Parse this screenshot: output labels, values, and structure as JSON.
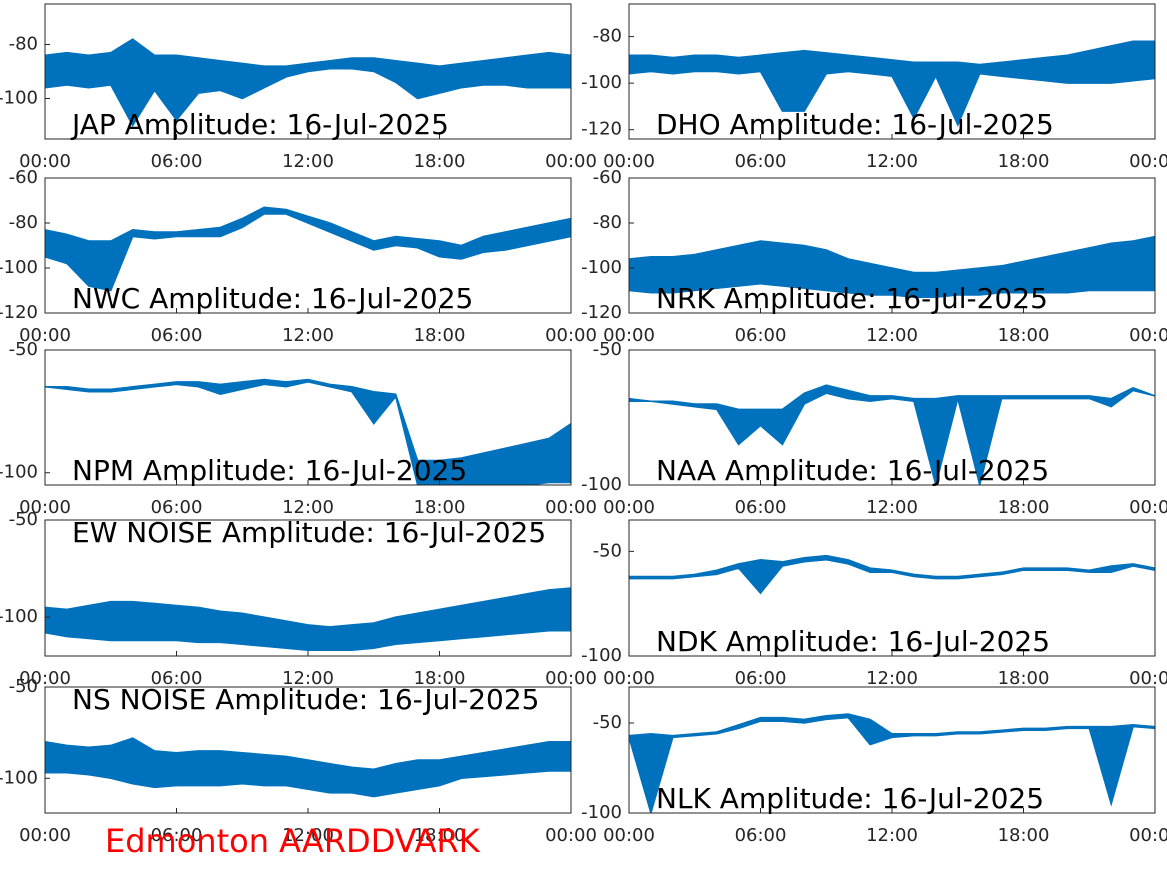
{
  "footer": "Edmonton AARDDVARK",
  "chart_data": [
    {
      "type": "band",
      "title": "JAP Amplitude: 16-Jul-2025",
      "title_position": "bottom",
      "color": "#0072bd",
      "x": [
        0,
        1,
        2,
        3,
        4,
        5,
        6,
        7,
        8,
        9,
        10,
        11,
        12,
        13,
        14,
        15,
        16,
        17,
        18,
        19,
        20,
        21,
        22,
        23,
        24
      ],
      "upper": [
        -84,
        -83,
        -84,
        -83,
        -78,
        -84,
        -84,
        -85,
        -86,
        -87,
        -88,
        -88,
        -87,
        -86,
        -85,
        -85,
        -86,
        -87,
        -88,
        -87,
        -86,
        -85,
        -84,
        -83,
        -84
      ],
      "lower": [
        -96,
        -95,
        -96,
        -95,
        -110,
        -97,
        -108,
        -98,
        -97,
        -100,
        -96,
        -92,
        -90,
        -89,
        -89,
        -90,
        -94,
        -100,
        -98,
        -96,
        -95,
        -95,
        -96,
        -96,
        -96
      ],
      "xlim": [
        0,
        24
      ],
      "xticks": [
        {
          "value": 0,
          "label": "00:00"
        },
        {
          "value": 6,
          "label": "06:00"
        },
        {
          "value": 12,
          "label": "12:00"
        },
        {
          "value": 18,
          "label": "18:00"
        },
        {
          "value": 24,
          "label": "00:00"
        }
      ],
      "ylim": [
        -115,
        -65
      ],
      "yticks": [
        -100,
        -80
      ]
    },
    {
      "type": "band",
      "title": "DHO Amplitude: 16-Jul-2025",
      "title_position": "bottom",
      "color": "#0072bd",
      "x": [
        0,
        1,
        2,
        3,
        4,
        5,
        6,
        7,
        8,
        9,
        10,
        11,
        12,
        13,
        14,
        15,
        16,
        17,
        18,
        19,
        20,
        21,
        22,
        23,
        24
      ],
      "upper": [
        -88,
        -88,
        -89,
        -88,
        -88,
        -89,
        -88,
        -87,
        -86,
        -87,
        -88,
        -89,
        -90,
        -91,
        -91,
        -91,
        -92,
        -91,
        -90,
        -89,
        -88,
        -86,
        -84,
        -82,
        -82
      ],
      "lower": [
        -96,
        -95,
        -96,
        -95,
        -95,
        -96,
        -95,
        -112,
        -112,
        -96,
        -95,
        -96,
        -97,
        -115,
        -97,
        -118,
        -96,
        -97,
        -98,
        -99,
        -100,
        -100,
        -100,
        -99,
        -98
      ],
      "xlim": [
        0,
        24
      ],
      "xticks": [
        {
          "value": 0,
          "label": "00:00"
        },
        {
          "value": 6,
          "label": "06:00"
        },
        {
          "value": 12,
          "label": "12:00"
        },
        {
          "value": 18,
          "label": "18:00"
        },
        {
          "value": 24,
          "label": "00:00"
        }
      ],
      "ylim": [
        -124,
        -66
      ],
      "yticks": [
        -120,
        -100,
        -80
      ]
    },
    {
      "type": "band",
      "title": "NWC Amplitude: 16-Jul-2025",
      "title_position": "bottom",
      "color": "#0072bd",
      "x": [
        0,
        1,
        2,
        3,
        4,
        5,
        6,
        7,
        8,
        9,
        10,
        11,
        12,
        13,
        14,
        15,
        16,
        17,
        18,
        19,
        20,
        21,
        22,
        23,
        24
      ],
      "upper": [
        -83,
        -85,
        -88,
        -88,
        -83,
        -84,
        -84,
        -83,
        -82,
        -78,
        -73,
        -74,
        -77,
        -80,
        -84,
        -88,
        -86,
        -87,
        -88,
        -90,
        -86,
        -84,
        -82,
        -80,
        -78
      ],
      "lower": [
        -95,
        -98,
        -108,
        -110,
        -86,
        -87,
        -86,
        -86,
        -86,
        -82,
        -76,
        -76,
        -80,
        -84,
        -88,
        -92,
        -90,
        -91,
        -95,
        -96,
        -93,
        -92,
        -90,
        -88,
        -86
      ],
      "xlim": [
        0,
        24
      ],
      "xticks": [
        {
          "value": 0,
          "label": "00:00"
        },
        {
          "value": 6,
          "label": "06:00"
        },
        {
          "value": 12,
          "label": "12:00"
        },
        {
          "value": 18,
          "label": "18:00"
        },
        {
          "value": 24,
          "label": "00:00"
        }
      ],
      "ylim": [
        -120,
        -60
      ],
      "yticks": [
        -120,
        -100,
        -80,
        -60
      ]
    },
    {
      "type": "band",
      "title": "NRK Amplitude: 16-Jul-2025",
      "title_position": "bottom",
      "color": "#0072bd",
      "x": [
        0,
        1,
        2,
        3,
        4,
        5,
        6,
        7,
        8,
        9,
        10,
        11,
        12,
        13,
        14,
        15,
        16,
        17,
        18,
        19,
        20,
        21,
        22,
        23,
        24
      ],
      "upper": [
        -96,
        -95,
        -95,
        -94,
        -92,
        -90,
        -88,
        -89,
        -90,
        -92,
        -96,
        -98,
        -100,
        -102,
        -102,
        -101,
        -100,
        -99,
        -97,
        -95,
        -93,
        -91,
        -89,
        -88,
        -86
      ],
      "lower": [
        -110,
        -111,
        -111,
        -110,
        -109,
        -108,
        -107,
        -108,
        -109,
        -110,
        -111,
        -112,
        -112,
        -113,
        -113,
        -112,
        -112,
        -111,
        -111,
        -111,
        -111,
        -110,
        -110,
        -110,
        -110
      ],
      "xlim": [
        0,
        24
      ],
      "xticks": [
        {
          "value": 0,
          "label": "00:00"
        },
        {
          "value": 6,
          "label": "06:00"
        },
        {
          "value": 12,
          "label": "12:00"
        },
        {
          "value": 18,
          "label": "18:00"
        },
        {
          "value": 24,
          "label": "00:00"
        }
      ],
      "ylim": [
        -120,
        -60
      ],
      "yticks": [
        -120,
        -100,
        -80,
        -60
      ]
    },
    {
      "type": "band",
      "title": "NPM Amplitude: 16-Jul-2025",
      "title_position": "bottom",
      "color": "#0072bd",
      "x": [
        0,
        1,
        2,
        3,
        4,
        5,
        6,
        7,
        8,
        9,
        10,
        11,
        12,
        13,
        14,
        15,
        16,
        17,
        18,
        19,
        20,
        21,
        22,
        23,
        24
      ],
      "upper": [
        -65,
        -65,
        -66,
        -66,
        -65,
        -64,
        -63,
        -63,
        -64,
        -63,
        -62,
        -63,
        -62,
        -64,
        -65,
        -67,
        -68,
        -95,
        -95,
        -94,
        -92,
        -90,
        -88,
        -86,
        -80
      ],
      "lower": [
        -65,
        -66,
        -67,
        -67,
        -66,
        -65,
        -64,
        -65,
        -68,
        -66,
        -64,
        -65,
        -63,
        -65,
        -67,
        -80,
        -69,
        -105,
        -105,
        -105,
        -105,
        -105,
        -105,
        -104,
        -104
      ],
      "xlim": [
        0,
        24
      ],
      "xticks": [
        {
          "value": 0,
          "label": "00:00"
        },
        {
          "value": 6,
          "label": "06:00"
        },
        {
          "value": 12,
          "label": "12:00"
        },
        {
          "value": 18,
          "label": "18:00"
        },
        {
          "value": 24,
          "label": "00:00"
        }
      ],
      "ylim": [
        -105,
        -50
      ],
      "yticks": [
        -100,
        -50
      ]
    },
    {
      "type": "band",
      "title": "NAA Amplitude: 16-Jul-2025",
      "title_position": "bottom",
      "color": "#0072bd",
      "x": [
        0,
        1,
        2,
        3,
        4,
        5,
        6,
        7,
        8,
        9,
        10,
        11,
        12,
        13,
        14,
        15,
        16,
        17,
        18,
        19,
        20,
        21,
        22,
        23,
        24
      ],
      "upper": [
        -68,
        -69,
        -69,
        -70,
        -70,
        -72,
        -72,
        -72,
        -66,
        -63,
        -65,
        -67,
        -67,
        -68,
        -68,
        -67,
        -67,
        -67,
        -67,
        -67,
        -67,
        -67,
        -68,
        -64,
        -67
      ],
      "lower": [
        -69,
        -69,
        -70,
        -71,
        -72,
        -85,
        -78,
        -85,
        -70,
        -66,
        -68,
        -69,
        -68,
        -69,
        -100,
        -68,
        -100,
        -68,
        -68,
        -68,
        -68,
        -68,
        -71,
        -65,
        -67
      ],
      "xlim": [
        0,
        24
      ],
      "xticks": [
        {
          "value": 0,
          "label": "00:00"
        },
        {
          "value": 6,
          "label": "06:00"
        },
        {
          "value": 12,
          "label": "12:00"
        },
        {
          "value": 18,
          "label": "18:00"
        },
        {
          "value": 24,
          "label": "00:00"
        }
      ],
      "ylim": [
        -100,
        -50
      ],
      "yticks": [
        -100,
        -50
      ]
    },
    {
      "type": "band",
      "title": "EW NOISE Amplitude: 16-Jul-2025",
      "title_position": "top",
      "color": "#0072bd",
      "x": [
        0,
        1,
        2,
        3,
        4,
        5,
        6,
        7,
        8,
        9,
        10,
        11,
        12,
        13,
        14,
        15,
        16,
        17,
        18,
        19,
        20,
        21,
        22,
        23,
        24
      ],
      "upper": [
        -95,
        -96,
        -94,
        -92,
        -92,
        -93,
        -94,
        -95,
        -97,
        -98,
        -100,
        -102,
        -104,
        -105,
        -104,
        -103,
        -100,
        -98,
        -96,
        -94,
        -92,
        -90,
        -88,
        -86,
        -85
      ],
      "lower": [
        -108,
        -110,
        -111,
        -112,
        -112,
        -112,
        -112,
        -113,
        -113,
        -114,
        -115,
        -116,
        -117,
        -117,
        -117,
        -116,
        -114,
        -113,
        -112,
        -111,
        -110,
        -109,
        -108,
        -107,
        -107
      ],
      "xlim": [
        0,
        24
      ],
      "xticks": [
        {
          "value": 0,
          "label": "00:00"
        },
        {
          "value": 6,
          "label": "06:00"
        },
        {
          "value": 12,
          "label": "12:00"
        },
        {
          "value": 18,
          "label": "18:00"
        },
        {
          "value": 24,
          "label": "00:00"
        }
      ],
      "ylim": [
        -120,
        -50
      ],
      "yticks": [
        -100,
        -50
      ]
    },
    {
      "type": "band",
      "title": "NDK Amplitude: 16-Jul-2025",
      "title_position": "bottom",
      "color": "#0072bd",
      "x": [
        0,
        1,
        2,
        3,
        4,
        5,
        6,
        7,
        8,
        9,
        10,
        11,
        12,
        13,
        14,
        15,
        16,
        17,
        18,
        19,
        20,
        21,
        22,
        23,
        24
      ],
      "upper": [
        -62,
        -62,
        -62,
        -61,
        -59,
        -56,
        -54,
        -55,
        -53,
        -52,
        -54,
        -58,
        -59,
        -61,
        -62,
        -62,
        -61,
        -60,
        -58,
        -58,
        -58,
        -59,
        -57,
        -56,
        -58
      ],
      "lower": [
        -63,
        -63,
        -63,
        -62,
        -61,
        -58,
        -70,
        -57,
        -55,
        -54,
        -56,
        -60,
        -60,
        -62,
        -63,
        -63,
        -62,
        -61,
        -59,
        -59,
        -59,
        -60,
        -60,
        -57,
        -59
      ],
      "xlim": [
        0,
        24
      ],
      "xticks": [
        {
          "value": 0,
          "label": "00:00"
        },
        {
          "value": 6,
          "label": "06:00"
        },
        {
          "value": 12,
          "label": "12:00"
        },
        {
          "value": 18,
          "label": "18:00"
        },
        {
          "value": 24,
          "label": "00:00"
        }
      ],
      "ylim": [
        -100,
        -35
      ],
      "yticks": [
        -100,
        -50
      ]
    },
    {
      "type": "band",
      "title": "NS NOISE Amplitude: 16-Jul-2025",
      "title_position": "top",
      "color": "#0072bd",
      "x": [
        0,
        1,
        2,
        3,
        4,
        5,
        6,
        7,
        8,
        9,
        10,
        11,
        12,
        13,
        14,
        15,
        16,
        17,
        18,
        19,
        20,
        21,
        22,
        23,
        24
      ],
      "upper": [
        -80,
        -82,
        -83,
        -82,
        -78,
        -85,
        -86,
        -85,
        -85,
        -86,
        -87,
        -88,
        -90,
        -92,
        -94,
        -95,
        -92,
        -90,
        -90,
        -88,
        -86,
        -84,
        -82,
        -80,
        -80
      ],
      "lower": [
        -97,
        -97,
        -98,
        -100,
        -103,
        -105,
        -104,
        -104,
        -104,
        -103,
        -104,
        -104,
        -106,
        -108,
        -108,
        -110,
        -108,
        -106,
        -104,
        -100,
        -99,
        -98,
        -97,
        -96,
        -96
      ],
      "xlim": [
        0,
        24
      ],
      "xticks": [
        {
          "value": 0,
          "label": "00:00"
        },
        {
          "value": 6,
          "label": "06:00"
        },
        {
          "value": 12,
          "label": "12:00"
        },
        {
          "value": 18,
          "label": "18:00"
        },
        {
          "value": 24,
          "label": "00:00"
        }
      ],
      "ylim": [
        -119,
        -50
      ],
      "yticks": [
        -100,
        -50
      ]
    },
    {
      "type": "band",
      "title": "NLK Amplitude: 16-Jul-2025",
      "title_position": "bottom",
      "color": "#0072bd",
      "x": [
        0,
        1,
        2,
        3,
        4,
        5,
        6,
        7,
        8,
        9,
        10,
        11,
        12,
        13,
        14,
        15,
        16,
        17,
        18,
        19,
        20,
        21,
        22,
        23,
        24
      ],
      "upper": [
        -57,
        -56,
        -57,
        -56,
        -55,
        -51,
        -47,
        -47,
        -48,
        -46,
        -45,
        -48,
        -56,
        -56,
        -56,
        -55,
        -55,
        -54,
        -53,
        -53,
        -52,
        -52,
        -52,
        -51,
        -52
      ],
      "lower": [
        -58,
        -100,
        -58,
        -57,
        -56,
        -53,
        -49,
        -49,
        -50,
        -48,
        -47,
        -62,
        -58,
        -57,
        -57,
        -56,
        -56,
        -55,
        -54,
        -54,
        -53,
        -53,
        -95,
        -52,
        -53
      ],
      "xlim": [
        0,
        24
      ],
      "xticks": [
        {
          "value": 0,
          "label": "00:00"
        },
        {
          "value": 6,
          "label": "06:00"
        },
        {
          "value": 12,
          "label": "12:00"
        },
        {
          "value": 18,
          "label": "18:00"
        },
        {
          "value": 24,
          "label": "00:00"
        }
      ],
      "ylim": [
        -100,
        -30
      ],
      "yticks": [
        -100,
        -50
      ]
    }
  ]
}
